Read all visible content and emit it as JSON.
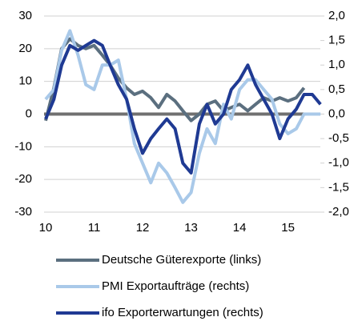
{
  "chart_data": {
    "type": "line",
    "x": [
      10.0,
      10.17,
      10.33,
      10.5,
      10.67,
      10.83,
      11.0,
      11.17,
      11.33,
      11.5,
      11.67,
      11.83,
      12.0,
      12.17,
      12.33,
      12.5,
      12.67,
      12.83,
      13.0,
      13.17,
      13.33,
      13.5,
      13.67,
      13.83,
      14.0,
      14.17,
      14.33,
      14.5,
      14.67,
      14.83,
      15.0,
      15.17,
      15.33,
      15.5,
      15.67
    ],
    "xlim": [
      10,
      15.75
    ],
    "xticks": [
      10,
      11,
      12,
      13,
      14,
      15
    ],
    "ylim": [
      -30,
      30
    ],
    "yticks": [
      -30,
      -20,
      -10,
      0,
      10,
      20,
      30
    ],
    "y2lim": [
      -2,
      2
    ],
    "y2ticks": [
      {
        "value": -2,
        "label": "-2,0"
      },
      {
        "value": -1.5,
        "label": "-1,5"
      },
      {
        "value": -1,
        "label": "-1,0"
      },
      {
        "value": -0.5,
        "label": "-0,5"
      },
      {
        "value": 0,
        "label": "0,0"
      },
      {
        "value": 0.5,
        "label": "0,5"
      },
      {
        "value": 1,
        "label": "1,0"
      },
      {
        "value": 1.5,
        "label": "1,5"
      },
      {
        "value": 2,
        "label": "2,0"
      }
    ],
    "grid": true,
    "series": [
      {
        "name": "Deutsche Güterexporte (links)",
        "color": "#5b6f7f",
        "values": [
          -2,
          8,
          20,
          23,
          21,
          20,
          21,
          18,
          15,
          11,
          8,
          6,
          7,
          5,
          2,
          6,
          4,
          1,
          -2,
          0,
          3,
          4,
          1,
          2,
          3,
          1,
          3,
          5,
          4,
          5,
          4,
          5,
          8,
          null,
          null
        ]
      },
      {
        "name": "PMI Exportaufträge (rechts)",
        "color": "#a9c9e9",
        "axis": "y2",
        "values": [
          0.3,
          0.5,
          1.3,
          1.7,
          1.2,
          0.6,
          0.5,
          1.0,
          1.0,
          1.1,
          0.3,
          -0.6,
          -1.0,
          -1.4,
          -1.0,
          -1.2,
          -1.5,
          -1.8,
          -1.6,
          -0.8,
          -0.3,
          -0.6,
          0.2,
          -0.1,
          0.5,
          0.7,
          0.7,
          0.5,
          0.3,
          -0.2,
          -0.4,
          -0.3,
          0.0,
          0.0,
          0.0
        ]
      },
      {
        "name": "ifo Exporterwartungen (rechts)",
        "color": "#1f3a93",
        "axis": "y2",
        "values": [
          -0.1,
          0.3,
          1.0,
          1.4,
          1.3,
          1.4,
          1.5,
          1.4,
          1.0,
          0.6,
          0.3,
          -0.3,
          -0.8,
          -0.5,
          -0.3,
          -0.1,
          -0.3,
          -1.0,
          -1.2,
          -0.2,
          0.2,
          -0.2,
          0.0,
          0.5,
          0.7,
          1.0,
          0.6,
          0.3,
          0.0,
          -0.5,
          -0.1,
          0.1,
          0.4,
          0.4,
          0.2
        ]
      }
    ]
  }
}
